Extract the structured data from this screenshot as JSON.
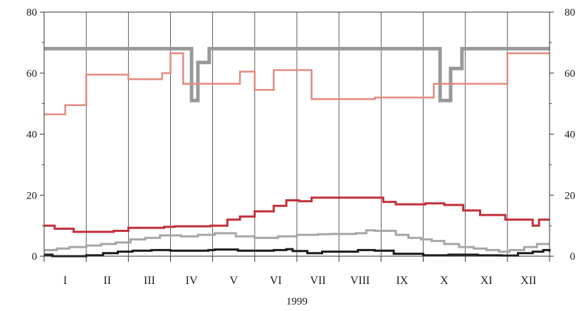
{
  "chart_data": {
    "type": "line",
    "step": true,
    "xlabel": "1999",
    "categories": [
      "I",
      "II",
      "III",
      "IV",
      "V",
      "VI",
      "VII",
      "VIII",
      "IX",
      "X",
      "XI",
      "XII"
    ],
    "x_range": [
      0,
      12
    ],
    "ylim": [
      0,
      80
    ],
    "y_ticks": [
      0,
      20,
      40,
      60,
      80
    ],
    "y_tick_labels": [
      "0",
      "20",
      "40",
      "60",
      "80"
    ],
    "y_ticks_right": true,
    "grid": "vertical lines at month boundaries, horizontal line at top",
    "legend": "none",
    "series": [
      {
        "color": "#999999",
        "width": 5,
        "x": [
          0,
          3.5,
          3.65,
          3.92,
          4.15,
          9.4,
          9.65,
          9.92,
          10.15,
          12
        ],
        "values": [
          68,
          51,
          63.5,
          68,
          68,
          51,
          61.5,
          68,
          68,
          68
        ]
      },
      {
        "color": "#e28a80",
        "width": 2.5,
        "x": [
          0,
          0.5,
          1.0,
          2.0,
          2.8,
          3.0,
          3.3,
          4.65,
          5.0,
          5.45,
          6.35,
          6.85,
          7.85,
          9.25,
          11.0,
          12
        ],
        "values": [
          46.5,
          49.5,
          59.5,
          58,
          60,
          66.5,
          56.5,
          60.5,
          54.5,
          61,
          51.5,
          51.5,
          52,
          56.5,
          66.5,
          66.5
        ]
      },
      {
        "color": "#c0303a",
        "width": 3,
        "x": [
          0,
          0.25,
          0.7,
          1.65,
          2.0,
          2.85,
          3.1,
          3.95,
          4.35,
          4.65,
          5.0,
          5.45,
          5.75,
          6.05,
          6.35,
          6.85,
          8.05,
          8.35,
          9.05,
          9.5,
          9.95,
          10.35,
          10.95,
          11.6,
          11.75,
          12
        ],
        "values": [
          10,
          9,
          8,
          8.3,
          9.3,
          9.6,
          9.8,
          10,
          12,
          13,
          14.7,
          16.5,
          18.3,
          18,
          19.2,
          19.2,
          17.8,
          17,
          17.3,
          16.8,
          15,
          13.5,
          12,
          10,
          12,
          12
        ]
      },
      {
        "color": "#a6a6a6",
        "width": 3,
        "x": [
          0,
          0.3,
          0.6,
          1.0,
          1.35,
          1.7,
          2.05,
          2.4,
          2.75,
          3.25,
          3.65,
          4.05,
          4.55,
          5.0,
          5.55,
          6.0,
          6.5,
          6.8,
          7.4,
          7.65,
          7.85,
          8.35,
          8.65,
          8.95,
          9.2,
          9.5,
          9.85,
          10.2,
          10.5,
          10.8,
          11.05,
          11.4,
          11.7,
          12
        ],
        "values": [
          2,
          2.5,
          3,
          3.5,
          4,
          4.5,
          5.5,
          6,
          6.8,
          6.5,
          7,
          7.5,
          6.5,
          6,
          6.5,
          7,
          7.2,
          7.3,
          7.5,
          8.5,
          8.3,
          7,
          6,
          5.5,
          5,
          4,
          3,
          2.5,
          2,
          1.5,
          2,
          3,
          4,
          4
        ]
      },
      {
        "color": "#1a1a1a",
        "width": 3,
        "x": [
          0,
          0.2,
          1.0,
          1.4,
          1.75,
          2.1,
          2.55,
          3.0,
          3.9,
          4.05,
          4.6,
          5.45,
          5.75,
          5.9,
          6.25,
          6.6,
          7.45,
          7.85,
          8.3,
          9.0,
          9.6,
          10.3,
          10.85,
          11.25,
          11.6,
          11.85,
          12
        ],
        "values": [
          0.5,
          0,
          0.3,
          1,
          1.5,
          1.8,
          2,
          1.8,
          2,
          2.2,
          1.8,
          2,
          2.3,
          1.7,
          1,
          1.5,
          2,
          1.8,
          0.8,
          0.3,
          0.5,
          0.3,
          0.2,
          1,
          1.5,
          2,
          1.5
        ]
      }
    ]
  }
}
